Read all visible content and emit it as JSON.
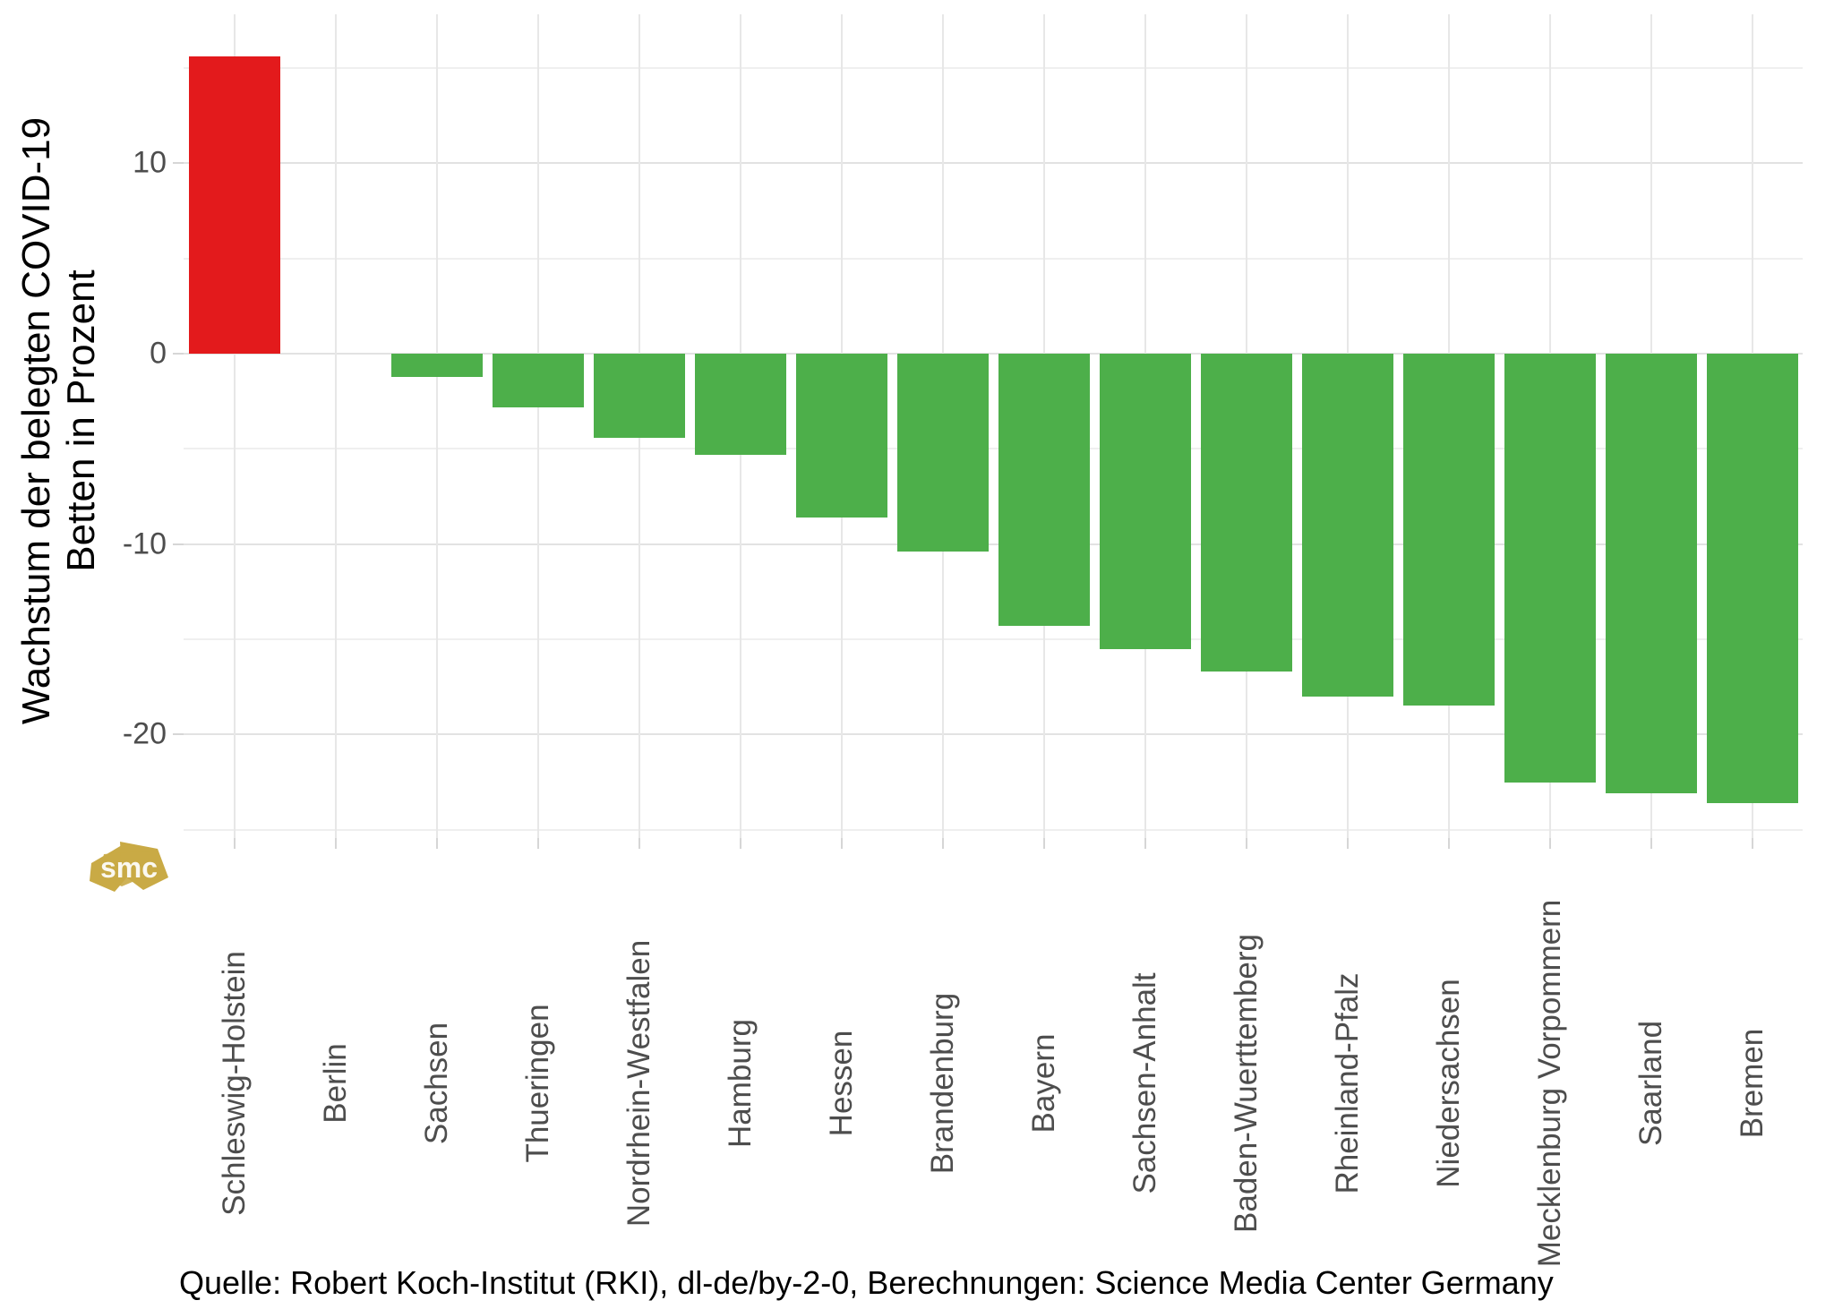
{
  "y_axis": {
    "title_line1": "Wachstum der belegten COVID-19",
    "title_line2": "Betten in Prozent",
    "tick_labels": [
      "10",
      "0",
      "-10",
      "-20"
    ]
  },
  "caption": "Quelle: Robert Koch-Institut (RKI), dl-de/by-2-0, Berechnungen: Science Media Center Germany",
  "logo": {
    "text": "smc",
    "color": "#c9aa45"
  },
  "colors": {
    "positive_bar": "#e31a1c",
    "negative_bar": "#4daf4a",
    "grid_major": "#e2e2e2",
    "grid_minor": "#efefef",
    "tick_text": "#4d4d4d",
    "text": "#000000"
  },
  "chart_data": {
    "type": "bar",
    "title": "",
    "ylabel": "Wachstum der belegten COVID-19 Betten in Prozent",
    "categories": [
      "Schleswig-Holstein",
      "Berlin",
      "Sachsen",
      "Thueringen",
      "Nordrhein-Westfalen",
      "Hamburg",
      "Hessen",
      "Brandenburg",
      "Bayern",
      "Sachsen-Anhalt",
      "Baden-Wuerttemberg",
      "Rheinland-Pfalz",
      "Niedersachsen",
      "Mecklenburg Vorpommern",
      "Saarland",
      "Bremen"
    ],
    "values": [
      15.6,
      0,
      -1.2,
      -2.8,
      -4.4,
      -5.3,
      -8.6,
      -10.4,
      -14.3,
      -15.5,
      -16.7,
      -18.0,
      -18.5,
      -22.5,
      -23.1,
      -23.6
    ],
    "bar_color_rule": "positive bars red #e31a1c, negative bars green #4daf4a",
    "y_ticks": [
      10,
      0,
      -10,
      -20
    ],
    "y_minor_ticks": [
      15,
      5,
      -5,
      -15,
      -25
    ],
    "ylim": [
      -25.4,
      17.8
    ],
    "grid": "horizontal major+minor and vertical category gridlines, light gray on white",
    "legend": "none",
    "xlabel": "",
    "source": "Quelle: Robert Koch-Institut (RKI), dl-de/by-2-0, Berechnungen: Science Media Center Germany"
  }
}
